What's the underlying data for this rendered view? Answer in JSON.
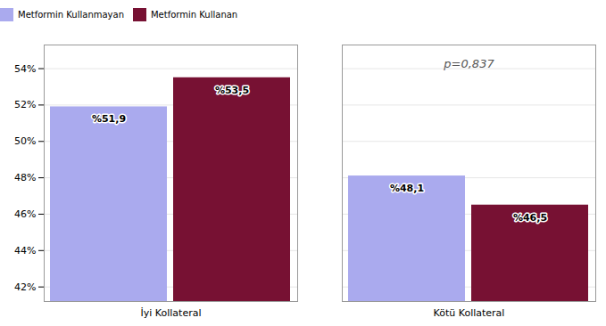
{
  "chart_data": {
    "type": "bar",
    "categories": [
      "İyi Kollateral",
      "Kötü Kollateral"
    ],
    "series": [
      {
        "name": "Metformin Kullanmayan",
        "color": "#AAAAEE",
        "values": [
          51.9,
          48.1
        ],
        "value_labels": [
          "%51,9",
          "%48,1"
        ]
      },
      {
        "name": "Metformin Kullanan",
        "color": "#771133",
        "values": [
          53.5,
          46.5
        ],
        "value_labels": [
          "%53,5",
          "%46,5"
        ]
      }
    ],
    "ylim": [
      41.2,
      55.3
    ],
    "yticks": [
      {
        "value": 42,
        "label": "42%"
      },
      {
        "value": 44,
        "label": "44%"
      },
      {
        "value": 46,
        "label": "46%"
      },
      {
        "value": 48,
        "label": "48%"
      },
      {
        "value": 50,
        "label": "50%"
      },
      {
        "value": 52,
        "label": "52%"
      },
      {
        "value": 54,
        "label": "54%"
      }
    ],
    "grid": true,
    "legend": "top",
    "data_labels": true,
    "annotation": "p=0,837"
  }
}
